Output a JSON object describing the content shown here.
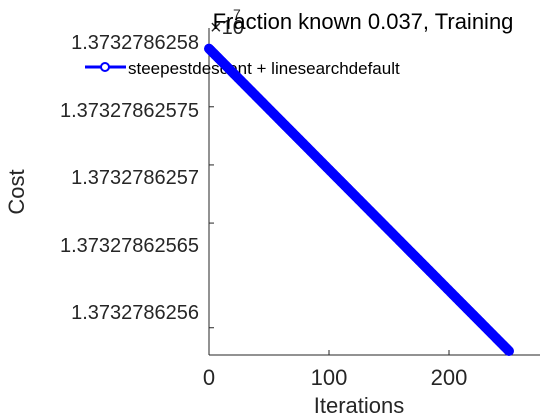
{
  "chart_data": {
    "type": "line",
    "title": "Fraction known 0.037, Training",
    "xlabel": "Iterations",
    "ylabel": "Cost",
    "y_exponent_label": "×10",
    "y_exponent_power": "7",
    "xlim": [
      0,
      250
    ],
    "ylim": [
      1.37327862554,
      1.37327862581
    ],
    "x_ticks": [
      0,
      100,
      200
    ],
    "x_tick_labels": [
      "0",
      "100",
      "200"
    ],
    "y_ticks": [
      1.37327862556,
      1.37327862565,
      1.3732786257,
      1.37327862575,
      1.3732786258
    ],
    "y_tick_labels": [
      "1.3732786256",
      "1.37327862565",
      "1.3732786257",
      "1.37327862575",
      "1.3732786258"
    ],
    "grid": false,
    "legend_position": "top",
    "series": [
      {
        "name": "steepestdescent + linesearchdefault",
        "color": "#0000ff",
        "marker": "circle",
        "x_start": 0,
        "x_end": 250,
        "y_start": 1.3732786258,
        "y_end": 1.37327862554
      }
    ]
  }
}
